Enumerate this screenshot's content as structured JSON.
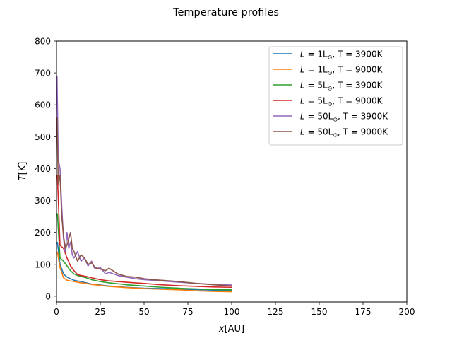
{
  "chart_data": {
    "type": "line",
    "title": "Temperature profiles",
    "xlabel_var": "x",
    "xlabel_unit": "[AU]",
    "ylabel_var": "T",
    "ylabel_unit": "[K]",
    "xlim": [
      0,
      200
    ],
    "ylim": [
      -18,
      800
    ],
    "xticks": [
      0,
      25,
      50,
      75,
      100,
      125,
      150,
      175,
      200
    ],
    "yticks": [
      0,
      100,
      200,
      300,
      400,
      500,
      600,
      700,
      800
    ],
    "grid": false,
    "legend_position": "top-right",
    "series": [
      {
        "name": "L = 1L⊙, T = 3900K",
        "legend": {
          "var": "L",
          "eq": " = 1L",
          "sun": "⊙",
          "rest": ", T = 3900K"
        },
        "color": "#1f77b4",
        "x": [
          0.5,
          2,
          4,
          6,
          8,
          10,
          12,
          14,
          17,
          20,
          25,
          30,
          40,
          50,
          60,
          70,
          80,
          90,
          100
        ],
        "y": [
          170,
          100,
          70,
          60,
          55,
          50,
          48,
          46,
          42,
          38,
          35,
          32,
          28,
          25,
          24,
          22,
          21,
          19,
          18
        ]
      },
      {
        "name": "L = 1L⊙, T = 9000K",
        "legend": {
          "var": "L",
          "eq": " = 1L",
          "sun": "⊙",
          "rest": ", T = 9000K"
        },
        "color": "#ff7f0e",
        "x": [
          0.5,
          2,
          4,
          6,
          8,
          10,
          12,
          14,
          17,
          20,
          25,
          30,
          40,
          50,
          60,
          70,
          80,
          90,
          100
        ],
        "y": [
          140,
          90,
          58,
          50,
          48,
          46,
          44,
          42,
          40,
          37,
          34,
          31,
          27,
          24,
          22,
          20,
          17,
          15,
          14
        ]
      },
      {
        "name": "L = 5L⊙, T = 3900K",
        "legend": {
          "var": "L",
          "eq": " = 5L",
          "sun": "⊙",
          "rest": ", T = 3900K"
        },
        "color": "#2ca02c",
        "x": [
          0.5,
          2,
          4,
          6,
          8,
          10,
          12,
          14,
          17,
          20,
          25,
          30,
          40,
          50,
          60,
          70,
          80,
          90,
          100
        ],
        "y": [
          260,
          120,
          110,
          95,
          80,
          70,
          65,
          62,
          58,
          52,
          46,
          42,
          36,
          32,
          28,
          25,
          23,
          21,
          20
        ]
      },
      {
        "name": "L = 5L⊙, T = 9000K",
        "legend": {
          "var": "L",
          "eq": " = 5L",
          "sun": "⊙",
          "rest": ", T = 9000K"
        },
        "color": "#d62728",
        "x": [
          0.5,
          2,
          4,
          6,
          8,
          10,
          12,
          14,
          17,
          20,
          25,
          30,
          40,
          50,
          60,
          70,
          80,
          90,
          100
        ],
        "y": [
          380,
          160,
          150,
          120,
          95,
          80,
          68,
          65,
          62,
          58,
          52,
          48,
          44,
          40,
          36,
          33,
          31,
          29,
          28
        ]
      },
      {
        "name": "L = 50L⊙, T = 3900K",
        "legend": {
          "var": "L",
          "eq": " = 50L",
          "sun": "⊙",
          "rest": ", T = 3900K"
        },
        "color": "#9467bd",
        "x": [
          0.3,
          1,
          2,
          3,
          4,
          5,
          6,
          7,
          8,
          9,
          10,
          12,
          14,
          16,
          18,
          20,
          22,
          25,
          28,
          30,
          35,
          40,
          45,
          50,
          55,
          60,
          70,
          80,
          90,
          100
        ],
        "y": [
          690,
          430,
          400,
          280,
          180,
          140,
          200,
          150,
          170,
          130,
          120,
          140,
          110,
          120,
          95,
          110,
          85,
          90,
          70,
          75,
          65,
          60,
          55,
          52,
          50,
          48,
          44,
          40,
          37,
          35
        ]
      },
      {
        "name": "L = 50L⊙, T = 9000K",
        "legend": {
          "var": "L",
          "eq": " = 50L",
          "sun": "⊙",
          "rest": ", T = 9000K"
        },
        "color": "#8c564b",
        "x": [
          0.3,
          1,
          2,
          3,
          4,
          5,
          6,
          7,
          8,
          9,
          10,
          12,
          14,
          16,
          18,
          20,
          22,
          25,
          28,
          30,
          35,
          40,
          45,
          50,
          55,
          60,
          70,
          80,
          90,
          100
        ],
        "y": [
          560,
          350,
          380,
          250,
          190,
          150,
          160,
          180,
          200,
          150,
          140,
          110,
          130,
          120,
          100,
          105,
          90,
          85,
          80,
          88,
          70,
          62,
          60,
          55,
          52,
          50,
          46,
          40,
          36,
          32
        ]
      }
    ]
  }
}
